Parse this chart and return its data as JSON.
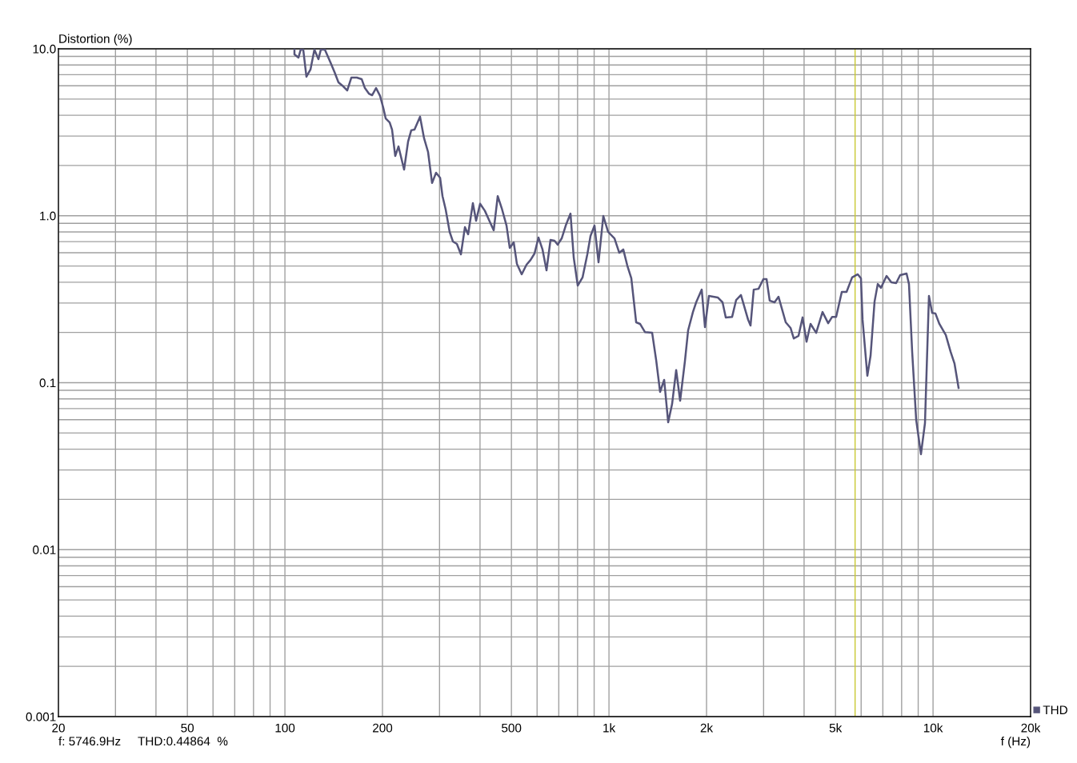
{
  "chart_data": {
    "type": "line",
    "ylabel": "Distortion (%)",
    "xlabel": "f (Hz)",
    "log": "xy",
    "grid": true,
    "legend": "bottom right",
    "marker": "none",
    "line_style": "solid",
    "xlim": [
      20,
      20000
    ],
    "ylim": [
      0.001,
      10
    ],
    "xticks": [
      20,
      50,
      100,
      200,
      500,
      {
        "value": 1000,
        "label": "1k"
      },
      {
        "value": 2000,
        "label": "2k"
      },
      {
        "value": 5000,
        "label": "5k"
      },
      {
        "value": 10000,
        "label": "10k"
      },
      {
        "value": 20000,
        "label": "20k"
      }
    ],
    "yticks": [
      {
        "value": 0.001,
        "label": "0.001"
      },
      {
        "value": 0.01,
        "label": "0.01"
      },
      {
        "value": 0.1,
        "label": "0.1"
      },
      {
        "value": 1,
        "label": "1.0"
      },
      {
        "value": 10,
        "label": "10.0"
      }
    ],
    "ref_lines": [
      {
        "axis": "x",
        "value": 5746.9,
        "color": "#c8c832"
      }
    ],
    "annotations": [
      "f: 5746.9Hz",
      "THD:0.44864  %"
    ],
    "series": [
      {
        "name": "THD",
        "color": "#56557a",
        "x": [
          107.0,
          107.0,
          110.1,
          111.9,
          113.9,
          116.5,
          119.9,
          123.3,
          126.9,
          129.1,
          132.8,
          138.2,
          142.2,
          146.3,
          151.4,
          155.7,
          160.3,
          166.7,
          172.5,
          176.5,
          181.6,
          185.8,
          191.1,
          196.6,
          201.2,
          204.6,
          210.5,
          214.1,
          219.0,
          224.1,
          233.2,
          239.9,
          245.4,
          251.1,
          261.2,
          268.8,
          276.5,
          284.5,
          292.7,
          301.2,
          306.4,
          313.4,
          322.4,
          329.9,
          339.4,
          349.2,
          359.3,
          367.6,
          380.2,
          389.0,
          400.2,
          414.1,
          428.5,
          440.9,
          453.6,
          466.7,
          482.9,
          494.0,
          508.2,
          519.9,
          537.9,
          556.5,
          572.6,
          589.1,
          606.1,
          623.6,
          641.6,
          660.0,
          679.1,
          694.7,
          714.7,
          735.4,
          760.8,
          778.4,
          800.9,
          828.7,
          857.4,
          877.1,
          902.4,
          928.5,
          960.5,
          993.8,
          1040,
          1076,
          1107,
          1139,
          1172,
          1213,
          1247,
          1291,
          1359,
          1398,
          1438,
          1480,
          1523,
          1566,
          1612,
          1658,
          1715,
          1755,
          1816,
          1858,
          1933,
          1978,
          2034,
          2166,
          2241,
          2293,
          2399,
          2469,
          2554,
          2688,
          2734,
          2797,
          2894,
          2995,
          3064,
          3133,
          3243,
          3336,
          3511,
          3633,
          3717,
          3846,
          3957,
          4071,
          4188,
          4359,
          4560,
          4747,
          4883,
          5024,
          5229,
          5409,
          5627,
          5858,
          5992,
          6061,
          6271,
          6415,
          6600,
          6752,
          6908,
          7187,
          7436,
          7694,
          7916,
          8285,
          8428,
          8622,
          8872,
          9178,
          9443,
          9714,
          9938,
          10170,
          10460,
          10950,
          11330,
          11650,
          11990
        ],
        "values": [
          9.9,
          9.26,
          8.86,
          9.9,
          9.9,
          6.8,
          7.51,
          9.9,
          8.66,
          9.9,
          9.9,
          8.29,
          7.26,
          6.29,
          5.95,
          5.63,
          6.72,
          6.72,
          6.58,
          5.82,
          5.39,
          5.27,
          5.82,
          5.22,
          4.42,
          3.83,
          3.62,
          3.28,
          2.28,
          2.6,
          1.89,
          2.78,
          3.25,
          3.28,
          3.92,
          2.91,
          2.41,
          1.57,
          1.81,
          1.69,
          1.31,
          1.09,
          0.8,
          0.701,
          0.678,
          0.587,
          0.854,
          0.774,
          1.19,
          0.933,
          1.18,
          1.07,
          0.923,
          0.818,
          1.31,
          1.11,
          0.873,
          0.642,
          0.693,
          0.514,
          0.446,
          0.509,
          0.543,
          0.594,
          0.74,
          0.628,
          0.471,
          0.716,
          0.708,
          0.671,
          0.732,
          0.873,
          1.03,
          0.562,
          0.382,
          0.427,
          0.587,
          0.757,
          0.873,
          0.526,
          0.997,
          0.8,
          0.732,
          0.6,
          0.628,
          0.503,
          0.422,
          0.23,
          0.225,
          0.201,
          0.199,
          0.137,
          0.0881,
          0.104,
          0.0579,
          0.0746,
          0.119,
          0.078,
          0.134,
          0.206,
          0.265,
          0.303,
          0.361,
          0.215,
          0.331,
          0.324,
          0.303,
          0.246,
          0.248,
          0.313,
          0.335,
          0.238,
          0.22,
          0.361,
          0.365,
          0.417,
          0.417,
          0.31,
          0.303,
          0.327,
          0.23,
          0.213,
          0.184,
          0.191,
          0.246,
          0.176,
          0.225,
          0.199,
          0.265,
          0.227,
          0.248,
          0.248,
          0.35,
          0.35,
          0.427,
          0.446,
          0.422,
          0.238,
          0.11,
          0.145,
          0.306,
          0.39,
          0.37,
          0.436,
          0.399,
          0.395,
          0.441,
          0.451,
          0.39,
          0.153,
          0.0598,
          0.0373,
          0.0573,
          0.331,
          0.262,
          0.26,
          0.225,
          0.193,
          0.153,
          0.13,
          0.0931
        ]
      }
    ]
  }
}
